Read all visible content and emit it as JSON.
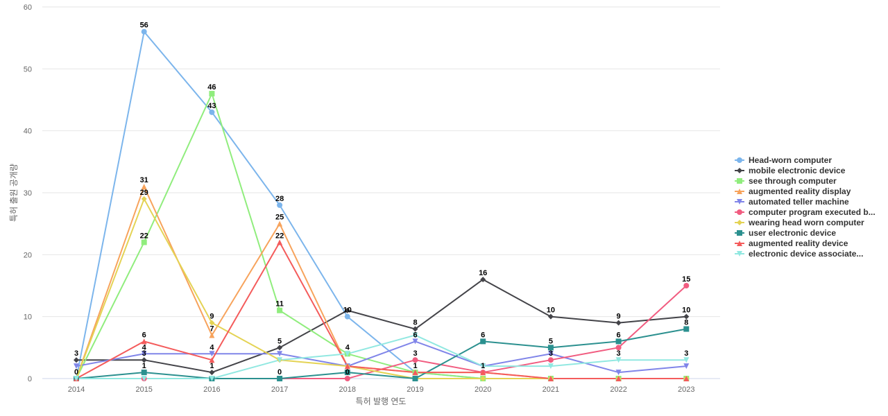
{
  "chart_data": {
    "type": "line",
    "title": "",
    "xlabel": "특허 발행 연도",
    "ylabel": "특허 출원 공개량",
    "ylim": [
      0,
      60
    ],
    "yticks": [
      "0",
      "10",
      "20",
      "30",
      "40",
      "50",
      "60"
    ],
    "grid": true,
    "legend_position": "right",
    "categories": [
      "2014",
      "2015",
      "2016",
      "2017",
      "2018",
      "2019",
      "2020",
      "2021",
      "2022",
      "2023"
    ],
    "series": [
      {
        "name": "Head-worn computer",
        "color": "#7cb5ec",
        "marker": "circle",
        "values": [
          0,
          56,
          43,
          28,
          10,
          1,
          0,
          0,
          0,
          0
        ]
      },
      {
        "name": "mobile electronic device",
        "color": "#434348",
        "marker": "diamond",
        "values": [
          3,
          3,
          1,
          5,
          11,
          8,
          16,
          10,
          9,
          10
        ]
      },
      {
        "name": "see through computer",
        "color": "#90ed7d",
        "marker": "square",
        "values": [
          0,
          22,
          46,
          11,
          4,
          1,
          0,
          0,
          0,
          0
        ]
      },
      {
        "name": "augmented reality display",
        "color": "#f7a35c",
        "marker": "triangle",
        "values": [
          0,
          31,
          7,
          25,
          2,
          1,
          1,
          0,
          0,
          0
        ]
      },
      {
        "name": "automated teller machine",
        "color": "#8085e9",
        "marker": "triangle-down",
        "values": [
          2,
          4,
          4,
          4,
          2,
          6,
          2,
          4,
          1,
          2
        ]
      },
      {
        "name": "computer program executed b...",
        "color": "#f15c80",
        "marker": "circle",
        "values": [
          0,
          0,
          0,
          0,
          0,
          3,
          1,
          3,
          5,
          15
        ]
      },
      {
        "name": "wearing head worn computer",
        "color": "#e4d354",
        "marker": "diamond",
        "values": [
          0,
          29,
          9,
          3,
          2,
          0,
          0,
          0,
          0,
          0
        ]
      },
      {
        "name": "user electronic device",
        "color": "#2b908f",
        "marker": "square",
        "values": [
          0,
          1,
          0,
          0,
          1,
          0,
          6,
          5,
          6,
          8
        ]
      },
      {
        "name": "augmented reality device",
        "color": "#f45b5b",
        "marker": "triangle",
        "values": [
          0,
          6,
          3,
          22,
          2,
          1,
          1,
          0,
          0,
          0
        ]
      },
      {
        "name": "electronic device associate...",
        "color": "#91e8e1",
        "marker": "triangle-down",
        "values": [
          0,
          0,
          0,
          3,
          4,
          7,
          2,
          2,
          3,
          3
        ]
      }
    ],
    "data_labels": [
      {
        "series": 0,
        "points": [
          1,
          2,
          3,
          4,
          5
        ]
      },
      {
        "series": 1,
        "points": [
          0,
          1,
          2,
          3,
          5,
          6,
          7,
          8,
          9
        ]
      },
      {
        "series": 2,
        "points": [
          1,
          2,
          3,
          4
        ]
      },
      {
        "series": 3,
        "points": [
          1,
          2,
          3
        ]
      },
      {
        "series": 4,
        "points": [
          1,
          2,
          5
        ]
      },
      {
        "series": 5,
        "points": [
          4,
          5,
          6,
          7,
          9
        ]
      },
      {
        "series": 6,
        "points": [
          1,
          2
        ]
      },
      {
        "series": 7,
        "points": [
          0,
          1,
          3,
          6,
          7,
          8,
          9
        ]
      },
      {
        "series": 8,
        "points": [
          1,
          3
        ]
      },
      {
        "series": 9,
        "points": [
          8,
          9
        ]
      }
    ]
  }
}
